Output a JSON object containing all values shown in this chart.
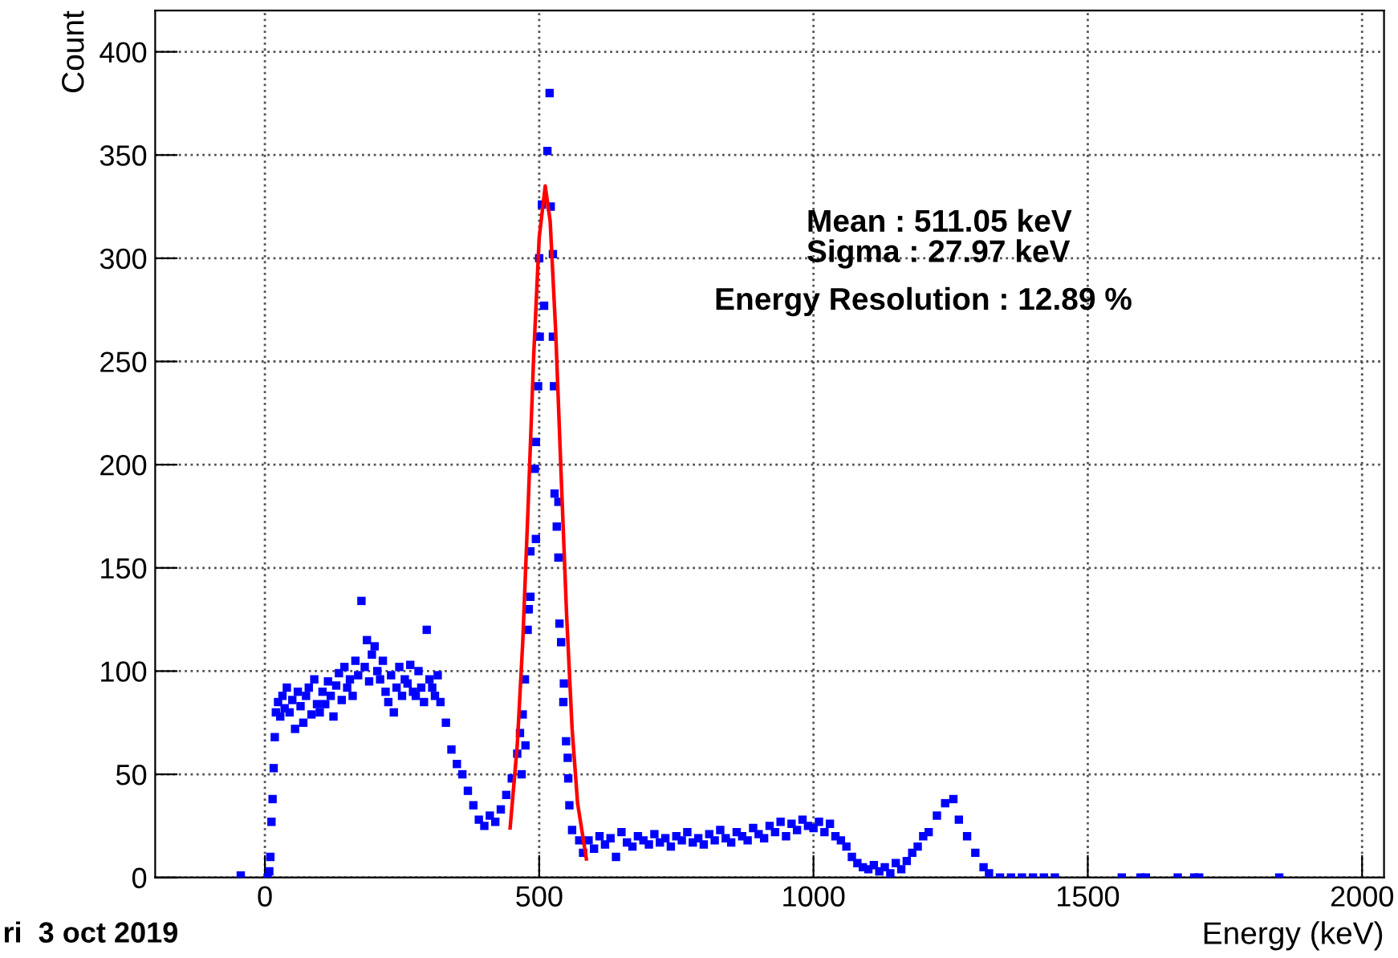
{
  "chart_data": {
    "type": "scatter",
    "xlabel": "Energy (keV)",
    "ylabel": "Count",
    "xlim": [
      -200,
      2040
    ],
    "ylim": [
      0,
      420
    ],
    "xticks": [
      0,
      500,
      1000,
      1500,
      2000
    ],
    "yticks": [
      0,
      50,
      100,
      150,
      200,
      250,
      300,
      350,
      400
    ],
    "grid": true,
    "legend": false,
    "annotations": [
      "Mean : 511.05 keV",
      "Sigma : 27.97 keV",
      "Energy Resolution : 12.89 %",
      "ri  3 oct 2019"
    ],
    "series": [
      {
        "color": "#0000ff",
        "marker": "square",
        "x": [
          -44,
          5,
          8,
          10,
          12,
          14,
          16,
          18,
          20,
          24,
          28,
          32,
          36,
          40,
          45,
          50,
          55,
          60,
          65,
          70,
          75,
          80,
          85,
          90,
          95,
          100,
          105,
          110,
          115,
          120,
          125,
          130,
          135,
          140,
          145,
          150,
          155,
          160,
          165,
          170,
          176,
          182,
          186,
          190,
          195,
          200,
          205,
          210,
          215,
          220,
          225,
          230,
          235,
          240,
          245,
          250,
          255,
          260,
          265,
          270,
          275,
          280,
          285,
          290,
          295,
          300,
          305,
          310,
          315,
          320,
          330,
          340,
          350,
          360,
          370,
          380,
          390,
          400,
          410,
          420,
          430,
          440,
          450,
          460,
          465,
          468,
          470,
          475,
          474,
          479,
          481,
          479,
          484,
          484,
          492,
          494,
          494,
          498,
          501,
          500,
          505,
          509,
          515,
          519,
          521,
          525,
          525,
          527,
          528,
          532,
          535,
          535,
          537,
          540,
          544,
          545,
          549,
          552,
          553,
          555,
          560,
          573
        ],
        "values": [
          1,
          0,
          3,
          10,
          27,
          38,
          53,
          68,
          80,
          85,
          78,
          88,
          82,
          92,
          80,
          86,
          72,
          90,
          83,
          75,
          88,
          92,
          79,
          96,
          84,
          80,
          90,
          84,
          95,
          88,
          78,
          93,
          99,
          86,
          102,
          92,
          96,
          88,
          105,
          98,
          134,
          102,
          115,
          95,
          108,
          112,
          100,
          96,
          105,
          90,
          85,
          98,
          80,
          92,
          102,
          88,
          96,
          94,
          103,
          90,
          88,
          100,
          92,
          85,
          120,
          96,
          92,
          88,
          98,
          85,
          75,
          62,
          55,
          50,
          42,
          35,
          28,
          25,
          30,
          27,
          33,
          40,
          48,
          60,
          70,
          50,
          79,
          64,
          96,
          120,
          130,
          130,
          136,
          158,
          198,
          164,
          211,
          238,
          262,
          300,
          326,
          277,
          352,
          380,
          325,
          262,
          302,
          238,
          186,
          170,
          182,
          155,
          123,
          114,
          85,
          94,
          66,
          58,
          48,
          35,
          23,
          18
        ]
      },
      {
        "color": "#0000ff",
        "marker": "square",
        "x": [
          580,
          590,
          600,
          610,
          620,
          630,
          640,
          650,
          660,
          670,
          680,
          690,
          700,
          710,
          720,
          730,
          740,
          750,
          760,
          770,
          780,
          790,
          800,
          810,
          820,
          830,
          840,
          850,
          860,
          870,
          880,
          890,
          900,
          910,
          920,
          930,
          940,
          950,
          960,
          970,
          980,
          990,
          1000,
          1010,
          1020,
          1030,
          1040,
          1050,
          1060,
          1070,
          1080,
          1090,
          1100,
          1110,
          1120,
          1130,
          1140,
          1150,
          1160,
          1170,
          1180,
          1190,
          1200,
          1210,
          1225,
          1240,
          1255,
          1265,
          1280,
          1295,
          1310,
          1320,
          1340,
          1360,
          1380,
          1400,
          1420,
          1440,
          1562,
          1596,
          1606,
          1664,
          1694,
          1703,
          1849
        ],
        "values": [
          12,
          18,
          14,
          20,
          16,
          19,
          10,
          22,
          17,
          15,
          20,
          18,
          16,
          21,
          17,
          19,
          15,
          20,
          18,
          22,
          17,
          19,
          16,
          21,
          18,
          23,
          19,
          17,
          22,
          20,
          18,
          24,
          21,
          19,
          25,
          22,
          27,
          20,
          26,
          23,
          28,
          25,
          24,
          27,
          22,
          26,
          20,
          18,
          15,
          10,
          7,
          5,
          4,
          6,
          3,
          5,
          2,
          7,
          4,
          8,
          12,
          15,
          20,
          22,
          30,
          36,
          38,
          28,
          20,
          12,
          5,
          2,
          0,
          0,
          0,
          0,
          0,
          0,
          0,
          0,
          0,
          0,
          0,
          0,
          0
        ]
      },
      {
        "type": "line",
        "color": "#ff0000",
        "x": [
          447,
          460,
          470,
          480,
          490,
          500,
          511,
          520,
          530,
          540,
          550,
          560,
          570,
          586
        ],
        "values": [
          24,
          64,
          114,
          181,
          253,
          310,
          335,
          318,
          265,
          195,
          127,
          72,
          36,
          9
        ]
      }
    ]
  }
}
